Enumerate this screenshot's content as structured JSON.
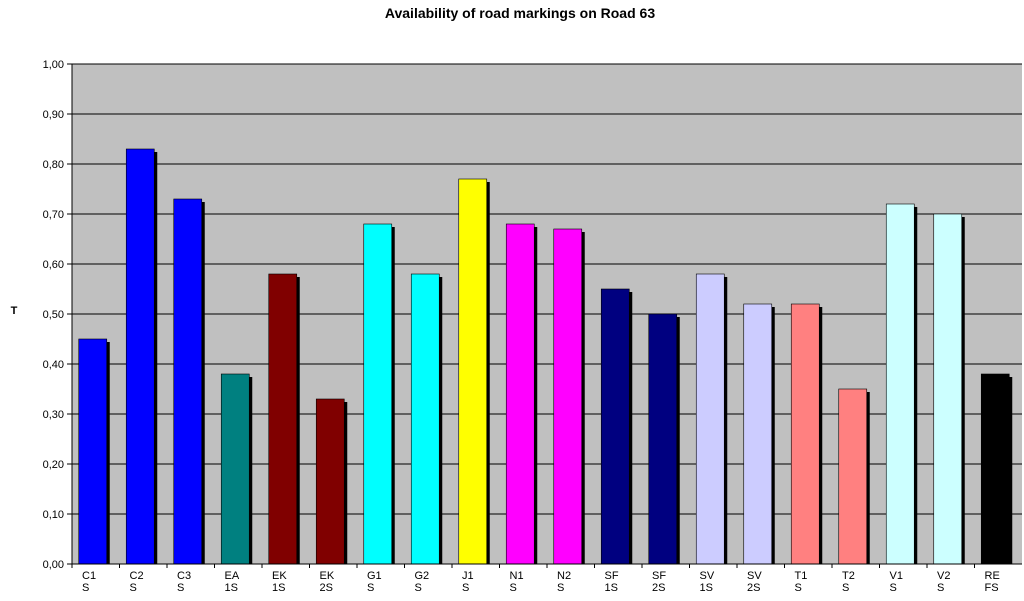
{
  "chart_data": {
    "type": "bar",
    "title": "Availability of road markings on Road 63",
    "xlabel": "",
    "ylabel": "T",
    "ylim": [
      0,
      1.0
    ],
    "yticks": [
      "0,00",
      "0,10",
      "0,20",
      "0,30",
      "0,40",
      "0,50",
      "0,60",
      "0,70",
      "0,80",
      "0,90",
      "1,00"
    ],
    "grid": true,
    "legend": "none",
    "plot_background": "#c0c0c0",
    "categories": [
      {
        "line1": "C1",
        "line2": "S"
      },
      {
        "line1": "C2",
        "line2": "S"
      },
      {
        "line1": "C3",
        "line2": "S"
      },
      {
        "line1": "EA",
        "line2": "1S"
      },
      {
        "line1": "EK",
        "line2": "1S"
      },
      {
        "line1": "EK",
        "line2": "2S"
      },
      {
        "line1": "G1",
        "line2": "S"
      },
      {
        "line1": "G2",
        "line2": "S"
      },
      {
        "line1": "J1",
        "line2": "S"
      },
      {
        "line1": "N1",
        "line2": "S"
      },
      {
        "line1": "N2",
        "line2": "S"
      },
      {
        "line1": "SF",
        "line2": "1S"
      },
      {
        "line1": "SF",
        "line2": "2S"
      },
      {
        "line1": "SV",
        "line2": "1S"
      },
      {
        "line1": "SV",
        "line2": "2S"
      },
      {
        "line1": "T1",
        "line2": "S"
      },
      {
        "line1": "T2",
        "line2": "S"
      },
      {
        "line1": "V1",
        "line2": "S"
      },
      {
        "line1": "V2",
        "line2": "S"
      },
      {
        "line1": "RE",
        "line2": "FS"
      }
    ],
    "values": [
      0.45,
      0.83,
      0.73,
      0.38,
      0.58,
      0.33,
      0.68,
      0.58,
      0.77,
      0.68,
      0.67,
      0.55,
      0.5,
      0.58,
      0.52,
      0.52,
      0.35,
      0.72,
      0.7,
      0.38
    ],
    "colors": [
      "#0000ff",
      "#0000ff",
      "#0000ff",
      "#008080",
      "#800000",
      "#800000",
      "#00ffff",
      "#00ffff",
      "#ffff00",
      "#ff00ff",
      "#ff00ff",
      "#000080",
      "#000080",
      "#ccccff",
      "#ccccff",
      "#ff8080",
      "#ff8080",
      "#ccffff",
      "#ccffff",
      "#000000"
    ]
  }
}
